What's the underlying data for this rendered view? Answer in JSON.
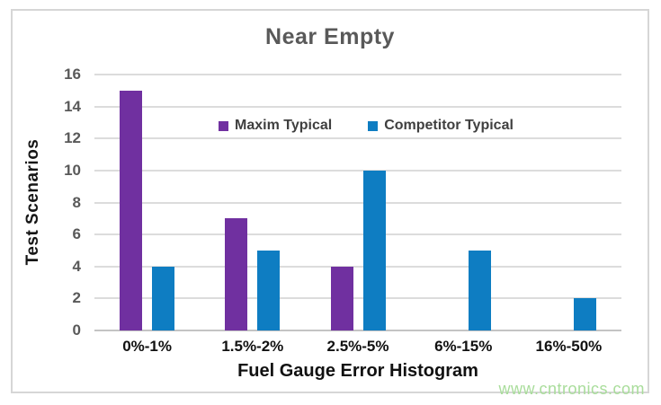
{
  "chart_data": {
    "type": "bar",
    "title": "Near Empty",
    "categories": [
      "0%-1%",
      "1.5%-2%",
      "2.5%-5%",
      "6%-15%",
      "16%-50%"
    ],
    "series": [
      {
        "name": "Maxim Typical",
        "color": "#7030a0",
        "values": [
          15,
          7,
          4,
          0,
          0
        ]
      },
      {
        "name": "Competitor Typical",
        "color": "#0e7dc2",
        "values": [
          4,
          5,
          10,
          5,
          2
        ]
      }
    ],
    "xlabel": "Fuel Gauge Error Histogram",
    "ylabel": "Test Scenarios",
    "ylim": [
      0,
      16
    ],
    "ytick_step": 2,
    "grid": true,
    "legend_position": "top-center-inside"
  },
  "watermark": "www.cntronics.com",
  "colors": {
    "gridline": "#dcdcdc",
    "axis_line": "#c4c4c4",
    "title_text": "#595959",
    "tick_text": "#595959",
    "frame_border": "#d6d6d6",
    "watermark_text": "#a9dd9b"
  }
}
